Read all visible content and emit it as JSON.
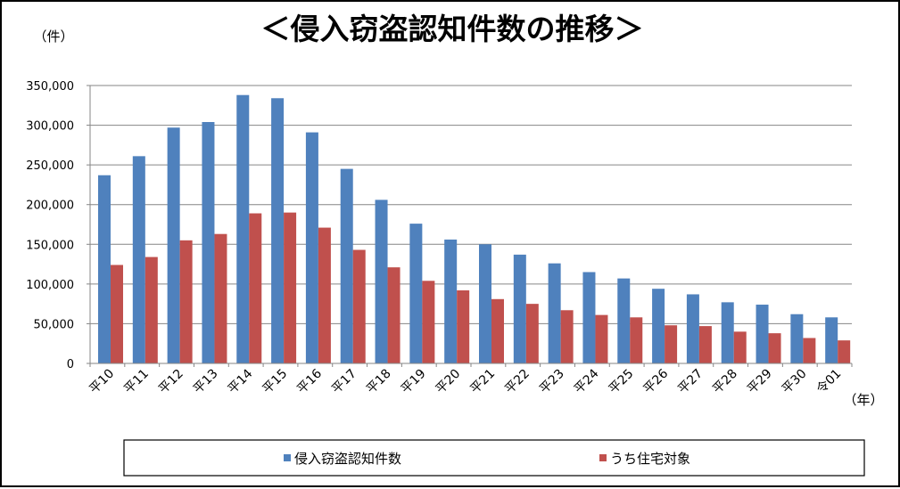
{
  "chart_data": {
    "type": "bar",
    "title": "＜侵入窃盗認知件数の推移＞",
    "ylabel": "（件）",
    "xlabel": "（年）",
    "categories": [
      "平10",
      "平11",
      "平12",
      "平13",
      "平14",
      "平15",
      "平16",
      "平17",
      "平18",
      "平19",
      "平20",
      "平21",
      "平22",
      "平23",
      "平24",
      "平25",
      "平26",
      "平27",
      "平28",
      "平29",
      "平30",
      "令01"
    ],
    "series": [
      {
        "name": "侵入窃盗認知件数",
        "color": "#4f81bd",
        "values": [
          237000,
          261000,
          297000,
          304000,
          338000,
          334000,
          291000,
          245000,
          206000,
          176000,
          156000,
          150000,
          137000,
          126000,
          115000,
          107000,
          94000,
          87000,
          77000,
          74000,
          62000,
          58000
        ]
      },
      {
        "name": "うち住宅対象",
        "color": "#c0504d",
        "values": [
          124000,
          134000,
          155000,
          163000,
          189000,
          190000,
          171000,
          143000,
          121000,
          104000,
          92000,
          81000,
          75000,
          67000,
          61000,
          58000,
          48000,
          47000,
          40000,
          38000,
          32000,
          29000
        ]
      }
    ],
    "ylim": [
      0,
      350000
    ],
    "yticks": [
      "0",
      "50,000",
      "100,000",
      "150,000",
      "200,000",
      "250,000",
      "300,000",
      "350,000"
    ],
    "grid": true,
    "legend_position": "bottom"
  }
}
